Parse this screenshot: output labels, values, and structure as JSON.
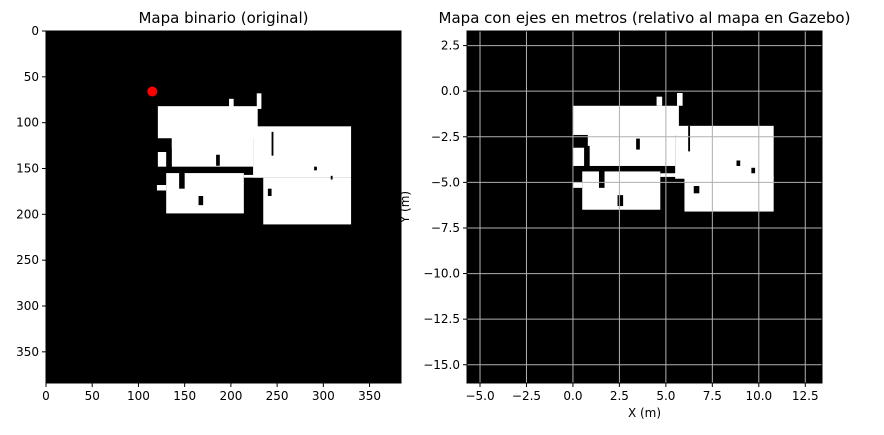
{
  "chart_data": [
    {
      "type": "heatmap",
      "title": "Mapa binario (original)",
      "xlabel": "",
      "ylabel": "",
      "xlim": [
        0,
        384
      ],
      "ylim": [
        384,
        0
      ],
      "y_inverted": true,
      "xticks": [
        0,
        50,
        100,
        150,
        200,
        250,
        300,
        350
      ],
      "yticks": [
        0,
        50,
        100,
        150,
        200,
        250,
        300,
        350
      ],
      "grid": false,
      "background_color": "#000000",
      "free_space_color": "#ffffff",
      "free_space_regions": [
        {
          "x0": 121,
          "x1": 229,
          "y0": 82,
          "y1": 117
        },
        {
          "x0": 228,
          "x1": 233,
          "y0": 68,
          "y1": 85
        },
        {
          "x0": 198,
          "x1": 203,
          "y0": 74,
          "y1": 86
        },
        {
          "x0": 136,
          "x1": 224,
          "y0": 110,
          "y1": 148
        },
        {
          "x0": 224,
          "x1": 330,
          "y0": 104,
          "y1": 160
        },
        {
          "x0": 121,
          "x1": 132,
          "y0": 132,
          "y1": 148
        },
        {
          "x0": 120,
          "x1": 130,
          "y0": 168,
          "y1": 174
        },
        {
          "x0": 130,
          "x1": 214,
          "y0": 155,
          "y1": 199
        },
        {
          "x0": 214,
          "x1": 235,
          "y0": 157,
          "y1": 160
        },
        {
          "x0": 235,
          "x1": 330,
          "y0": 160,
          "y1": 211
        }
      ],
      "obstacles": [
        {
          "x0": 130,
          "x1": 136,
          "y0": 128,
          "y1": 152
        },
        {
          "x0": 144,
          "x1": 150,
          "y0": 152,
          "y1": 172
        },
        {
          "x0": 184,
          "x1": 188,
          "y0": 135,
          "y1": 147
        },
        {
          "x0": 165,
          "x1": 170,
          "y0": 180,
          "y1": 190
        },
        {
          "x0": 244,
          "x1": 246,
          "y0": 110,
          "y1": 136
        },
        {
          "x0": 240,
          "x1": 244,
          "y0": 172,
          "y1": 180
        },
        {
          "x0": 290,
          "x1": 293,
          "y0": 148,
          "y1": 152
        },
        {
          "x0": 308,
          "x1": 310,
          "y0": 158,
          "y1": 162
        }
      ],
      "markers": [
        {
          "x": 115,
          "y": 66,
          "color": "#ff0000"
        }
      ]
    },
    {
      "type": "heatmap",
      "title": "Mapa con ejes en metros (relativo al mapa en Gazebo)",
      "xlabel": "X (m)",
      "ylabel": "Y (m)",
      "xlim": [
        -5.7,
        13.4
      ],
      "ylim": [
        -16.0,
        3.3
      ],
      "xticks": [
        -5.0,
        -2.5,
        0.0,
        2.5,
        5.0,
        7.5,
        10.0,
        12.5
      ],
      "yticks": [
        -15.0,
        -12.5,
        -10.0,
        -7.5,
        -5.0,
        -2.5,
        0.0,
        2.5
      ],
      "grid": true,
      "grid_color": "#b0b0b0",
      "background_color": "#000000",
      "free_space_color": "#ffffff",
      "free_space_regions": [
        {
          "x0": 0.0,
          "x1": 5.7,
          "y0": -0.8,
          "y1": -2.4
        },
        {
          "x0": 5.6,
          "x1": 5.9,
          "y0": -0.1,
          "y1": -0.8
        },
        {
          "x0": 4.5,
          "x1": 4.8,
          "y0": -0.3,
          "y1": -0.8
        },
        {
          "x0": 0.8,
          "x1": 5.5,
          "y0": -2.2,
          "y1": -4.1
        },
        {
          "x0": 5.5,
          "x1": 10.8,
          "y0": -1.9,
          "y1": -4.8
        },
        {
          "x0": 0.0,
          "x1": 0.7,
          "y0": -3.1,
          "y1": -4.1
        },
        {
          "x0": 0.0,
          "x1": 0.5,
          "y0": -5.0,
          "y1": -5.3
        },
        {
          "x0": 0.5,
          "x1": 4.7,
          "y0": -4.4,
          "y1": -6.5
        },
        {
          "x0": 4.7,
          "x1": 6.0,
          "y0": -4.5,
          "y1": -4.7
        },
        {
          "x0": 6.0,
          "x1": 10.8,
          "y0": -4.7,
          "y1": -6.6
        }
      ],
      "obstacles": [
        {
          "x0": 0.6,
          "x1": 0.9,
          "y0": -3.0,
          "y1": -4.3
        },
        {
          "x0": 1.4,
          "x1": 1.7,
          "y0": -4.3,
          "y1": -5.3
        },
        {
          "x0": 3.4,
          "x1": 3.6,
          "y0": -2.6,
          "y1": -3.2
        },
        {
          "x0": 2.4,
          "x1": 2.7,
          "y0": -5.7,
          "y1": -6.3
        },
        {
          "x0": 6.2,
          "x1": 6.3,
          "y0": -1.9,
          "y1": -3.3
        },
        {
          "x0": 6.5,
          "x1": 6.8,
          "y0": -5.2,
          "y1": -5.6
        },
        {
          "x0": 8.8,
          "x1": 9.0,
          "y0": -3.8,
          "y1": -4.1
        },
        {
          "x0": 9.6,
          "x1": 9.8,
          "y0": -4.2,
          "y1": -4.5
        }
      ],
      "markers": []
    }
  ]
}
